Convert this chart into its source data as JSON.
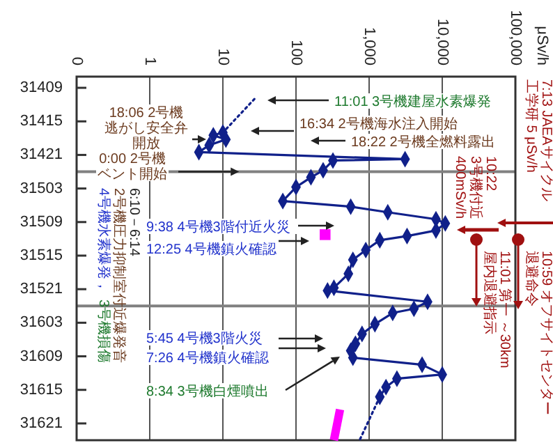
{
  "chart_data": {
    "type": "line",
    "orientation": "horizontal",
    "log": "x",
    "xlim": [
      0.1,
      100000
    ],
    "xticks": [
      {
        "value": 0.1,
        "label": "0"
      },
      1,
      10,
      100,
      {
        "value": 1000,
        "label": "1,000"
      },
      {
        "value": 10000,
        "label": "10,000"
      },
      {
        "value": 100000,
        "label": "100,000"
      }
    ],
    "ylim": [
      "--03-17T00:00",
      "--03-14T07:00"
    ],
    "yticks": [
      {
        "value": "--03-14T09:00",
        "label": "31409"
      },
      {
        "value": "--03-14T15:00",
        "label": "31415"
      },
      {
        "value": "--03-14T21:00",
        "label": "31421"
      },
      {
        "value": "--03-15T03:00",
        "label": "31503"
      },
      {
        "value": "--03-15T09:00",
        "label": "31509"
      },
      {
        "value": "--03-15T15:00",
        "label": "31515"
      },
      {
        "value": "--03-15T21:00",
        "label": "31521"
      },
      {
        "value": "--03-16T03:00",
        "label": "31603"
      },
      {
        "value": "--03-16T09:00",
        "label": "31609"
      },
      {
        "value": "--03-16T15:00",
        "label": "31615"
      },
      {
        "value": "--03-16T21:00",
        "label": "31621"
      }
    ],
    "grid": "x",
    "ref_lines": [
      {
        "axis": "y",
        "value": "--03-15T00:00",
        "color": "#808080"
      },
      {
        "axis": "y",
        "value": "--03-16T00:00",
        "color": "#808080"
      }
    ],
    "series": [
      {
        "color": "#10208a",
        "x": [
          "--03-14T11:00",
          "--03-14T17:00"
        ],
        "values": [
          27,
          10
        ],
        "line_style": "dotted"
      },
      {
        "color": "#10208a",
        "marker": "diamond",
        "line_style": "solid",
        "x": [
          "--03-14T17:00",
          "--03-14T17:30",
          "--03-14T18:15",
          "--03-14T19:15",
          "--03-14T20:30",
          "--03-14T21:45",
          "--03-14T22:00",
          "--03-14T23:45",
          "--03-15T01:00",
          "--03-15T02:45",
          "--03-15T05:15",
          "--03-15T06:15",
          "--03-15T07:15",
          "--03-15T08:30",
          "--03-15T09:15",
          "--03-15T10:30",
          "--03-15T11:30",
          "--03-15T12:15",
          "--03-15T14:00",
          "--03-15T15:45",
          "--03-15T18:15",
          "--03-15T20:45",
          "--03-15T21:15",
          "--03-15T23:15",
          "--03-16T00:30",
          "--03-16T01:15",
          "--03-16T03:15",
          "--03-16T05:00",
          "--03-16T06:45",
          "--03-16T08:00",
          "--03-16T09:15",
          "--03-16T10:30",
          "--03-16T12:15",
          "--03-16T13:00",
          "--03-16T14:30",
          "--03-16T16:15"
        ],
        "values": [
          10,
          7.4,
          11,
          6.5,
          4.7,
          3100,
          320,
          235,
          160,
          100,
          66,
          560,
          1800,
          8200,
          11000,
          8200,
          3300,
          1400,
          900,
          600,
          520,
          330,
          270,
          6300,
          4100,
          2100,
          1200,
          800,
          650,
          560,
          600,
          5300,
          10000,
          2400,
          1700,
          1400
        ]
      },
      {
        "color": "#10208a",
        "x": [
          "--03-16T16:15",
          "--03-17T00:00"
        ],
        "values": [
          1400,
          740
        ],
        "line_style": "dotted"
      },
      {
        "type": "scatter",
        "color": "#ff00ff",
        "x": [
          "--03-15T11:15"
        ],
        "values": [
          250
        ],
        "marker": "square"
      },
      {
        "color": "#ff00ff",
        "x": [
          "--03-16T18:30",
          "--03-17T00:00"
        ],
        "values": [
          400,
          330
        ]
      }
    ],
    "annotations": [
      "11:01 3号機建屋水素爆発",
      "16:34 2号機海水注入開始",
      "18:22 2号機全燃料露出",
      "18:06 2号機",
      "逃がし安全弁",
      "開放",
      {
        "text": "0:00 2号機",
        "x": 19,
        "y": "--03-15T00:00"
      },
      "ベント開始",
      "9:38 4号機3階付近火災",
      "12:25 4号機鎮火確認",
      "5:45 4号機3階火災",
      "7:26 4号機鎮火確認",
      "8:34 3号機白煙噴出",
      "10:22",
      "3号機付近",
      "400mSv/h",
      "11:01 第一 ～30km",
      "屋内退避指示",
      "10:59 オフサイトセンター",
      "退避命令",
      "7:13 JAEAサイクル",
      "工学研 5 μSv/h",
      "6:10－6:14",
      "2号機圧力抑制室付近爆発音",
      "4号機水素爆発，",
      "3号機損傷",
      "μSv/h"
    ]
  }
}
